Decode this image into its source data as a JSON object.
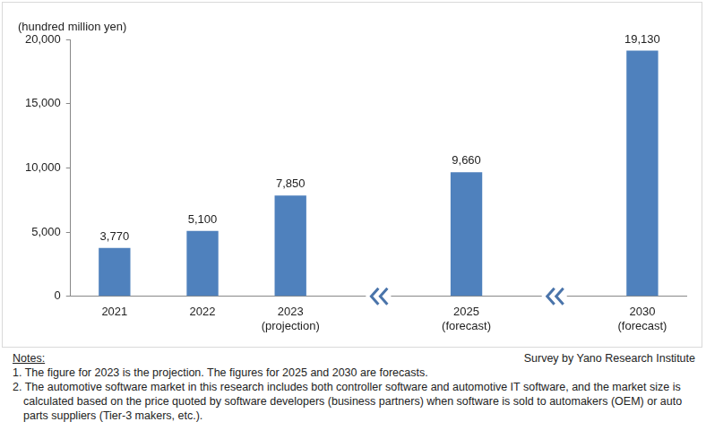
{
  "chart_data": {
    "type": "bar",
    "y_label": "(hundred million yen)",
    "categories": [
      "2021",
      "2022",
      "2023\n(projection)",
      null,
      "2025\n(forecast)",
      null,
      "2030\n(forecast)"
    ],
    "values": [
      3770,
      5100,
      7850,
      null,
      9660,
      null,
      19130
    ],
    "value_labels": [
      "3,770",
      "5,100",
      "7,850",
      null,
      "9,660",
      null,
      "19,130"
    ],
    "color": "#4f81bd",
    "ylim": [
      0,
      20000
    ],
    "yticks": [
      0,
      {
        "value": 5000,
        "label": "5,000"
      },
      {
        "value": 10000,
        "label": "10,000"
      },
      {
        "value": 15000,
        "label": "15,000"
      },
      {
        "value": 20000,
        "label": "20,000"
      }
    ],
    "grid": false,
    "data_labels": true,
    "notes_title": "Notes:",
    "source": "Survey by Yano Research Institute",
    "notes": [
      "1. The figure for 2023 is the projection. The figures for 2025 and 2030 are forecasts.",
      "2. The automotive software market in this research includes both controller software and automotive IT software, and the market size is calculated based on the price quoted by software developers (business partners) when software is sold to automakers (OEM) or auto parts suppliers (Tier-3 makers, etc.)."
    ]
  }
}
